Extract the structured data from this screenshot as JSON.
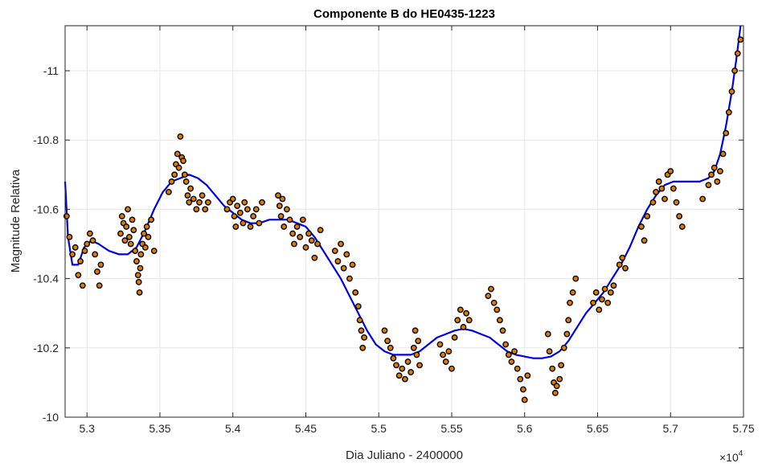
{
  "chart_data": {
    "type": "scatter",
    "title": "Componente B do HE0435-1223",
    "xlabel": "Dia Juliano - 2400000",
    "ylabel": "Magnitude Relativa",
    "x_multiplier_label": "×10",
    "x_multiplier_exp": "4",
    "xlim": [
      52850,
      57500
    ],
    "ylim": [
      -10.0,
      -11.13
    ],
    "y_reversed": true,
    "grid": true,
    "x_ticks": [
      53000,
      53500,
      54000,
      54500,
      55000,
      55500,
      56000,
      56500,
      57000,
      57500
    ],
    "x_tick_labels": [
      "5.3",
      "5.35",
      "5.4",
      "5.45",
      "5.5",
      "5.55",
      "5.6",
      "5.65",
      "5.7",
      "5.75"
    ],
    "y_ticks": [
      -10.0,
      -10.2,
      -10.4,
      -10.6,
      -10.8,
      -11.0
    ],
    "y_tick_labels": [
      "-10",
      "-10.2",
      "-10.4",
      "-10.6",
      "-10.8",
      "-11"
    ],
    "colors": {
      "points_fill": "#e07b00",
      "points_edge": "#000000",
      "fit_line": "#0000e6",
      "grid": "#e6e6e6",
      "axis": "#262626"
    },
    "series": [
      {
        "kind": "points",
        "values": [
          [
            52860,
            -10.58
          ],
          [
            52880,
            -10.52
          ],
          [
            52900,
            -10.47
          ],
          [
            52920,
            -10.49
          ],
          [
            52940,
            -10.41
          ],
          [
            52955,
            -10.45
          ],
          [
            52970,
            -10.38
          ],
          [
            52985,
            -10.48
          ],
          [
            53000,
            -10.5
          ],
          [
            53020,
            -10.53
          ],
          [
            53040,
            -10.51
          ],
          [
            53055,
            -10.47
          ],
          [
            53070,
            -10.42
          ],
          [
            53085,
            -10.38
          ],
          [
            53095,
            -10.44
          ],
          [
            53230,
            -10.53
          ],
          [
            53240,
            -10.58
          ],
          [
            53250,
            -10.56
          ],
          [
            53260,
            -10.51
          ],
          [
            53270,
            -10.55
          ],
          [
            53280,
            -10.6
          ],
          [
            53290,
            -10.52
          ],
          [
            53300,
            -10.5
          ],
          [
            53310,
            -10.57
          ],
          [
            53320,
            -10.54
          ],
          [
            53330,
            -10.48
          ],
          [
            53340,
            -10.45
          ],
          [
            53350,
            -10.41
          ],
          [
            53355,
            -10.39
          ],
          [
            53360,
            -10.36
          ],
          [
            53365,
            -10.43
          ],
          [
            53370,
            -10.47
          ],
          [
            53380,
            -10.5
          ],
          [
            53390,
            -10.53
          ],
          [
            53400,
            -10.49
          ],
          [
            53410,
            -10.55
          ],
          [
            53420,
            -10.52
          ],
          [
            53440,
            -10.57
          ],
          [
            53460,
            -10.48
          ],
          [
            53560,
            -10.65
          ],
          [
            53580,
            -10.68
          ],
          [
            53600,
            -10.7
          ],
          [
            53610,
            -10.73
          ],
          [
            53620,
            -10.76
          ],
          [
            53630,
            -10.72
          ],
          [
            53640,
            -10.81
          ],
          [
            53650,
            -10.75
          ],
          [
            53660,
            -10.74
          ],
          [
            53670,
            -10.7
          ],
          [
            53680,
            -10.68
          ],
          [
            53690,
            -10.64
          ],
          [
            53700,
            -10.62
          ],
          [
            53710,
            -10.66
          ],
          [
            53730,
            -10.63
          ],
          [
            53750,
            -10.6
          ],
          [
            53770,
            -10.62
          ],
          [
            53790,
            -10.64
          ],
          [
            53810,
            -10.6
          ],
          [
            53830,
            -10.62
          ],
          [
            53960,
            -10.6
          ],
          [
            53980,
            -10.62
          ],
          [
            54000,
            -10.63
          ],
          [
            54010,
            -10.58
          ],
          [
            54020,
            -10.55
          ],
          [
            54030,
            -10.61
          ],
          [
            54050,
            -10.59
          ],
          [
            54070,
            -10.56
          ],
          [
            54080,
            -10.62
          ],
          [
            54100,
            -10.6
          ],
          [
            54120,
            -10.55
          ],
          [
            54140,
            -10.58
          ],
          [
            54160,
            -10.6
          ],
          [
            54180,
            -10.56
          ],
          [
            54200,
            -10.62
          ],
          [
            54310,
            -10.64
          ],
          [
            54320,
            -10.61
          ],
          [
            54330,
            -10.58
          ],
          [
            54340,
            -10.63
          ],
          [
            54350,
            -10.55
          ],
          [
            54370,
            -10.6
          ],
          [
            54390,
            -10.57
          ],
          [
            54410,
            -10.53
          ],
          [
            54420,
            -10.5
          ],
          [
            54440,
            -10.55
          ],
          [
            54460,
            -10.52
          ],
          [
            54480,
            -10.57
          ],
          [
            54500,
            -10.49
          ],
          [
            54520,
            -10.53
          ],
          [
            54540,
            -10.51
          ],
          [
            54560,
            -10.46
          ],
          [
            54580,
            -10.5
          ],
          [
            54600,
            -10.54
          ],
          [
            54700,
            -10.48
          ],
          [
            54720,
            -10.45
          ],
          [
            54740,
            -10.5
          ],
          [
            54760,
            -10.43
          ],
          [
            54780,
            -10.47
          ],
          [
            54800,
            -10.4
          ],
          [
            54820,
            -10.44
          ],
          [
            54840,
            -10.36
          ],
          [
            54860,
            -10.32
          ],
          [
            54870,
            -10.28
          ],
          [
            54880,
            -10.25
          ],
          [
            54890,
            -10.2
          ],
          [
            54900,
            -10.23
          ],
          [
            55040,
            -10.25
          ],
          [
            55060,
            -10.22
          ],
          [
            55080,
            -10.2
          ],
          [
            55100,
            -10.17
          ],
          [
            55120,
            -10.15
          ],
          [
            55140,
            -10.12
          ],
          [
            55160,
            -10.14
          ],
          [
            55180,
            -10.11
          ],
          [
            55200,
            -10.16
          ],
          [
            55220,
            -10.13
          ],
          [
            55240,
            -10.2
          ],
          [
            55250,
            -10.25
          ],
          [
            55260,
            -10.18
          ],
          [
            55270,
            -10.22
          ],
          [
            55280,
            -10.15
          ],
          [
            55420,
            -10.21
          ],
          [
            55440,
            -10.18
          ],
          [
            55460,
            -10.16
          ],
          [
            55480,
            -10.19
          ],
          [
            55500,
            -10.14
          ],
          [
            55520,
            -10.23
          ],
          [
            55540,
            -10.28
          ],
          [
            55560,
            -10.31
          ],
          [
            55580,
            -10.26
          ],
          [
            55600,
            -10.3
          ],
          [
            55620,
            -10.28
          ],
          [
            55750,
            -10.35
          ],
          [
            55770,
            -10.37
          ],
          [
            55790,
            -10.33
          ],
          [
            55810,
            -10.31
          ],
          [
            55830,
            -10.28
          ],
          [
            55850,
            -10.25
          ],
          [
            55870,
            -10.21
          ],
          [
            55890,
            -10.18
          ],
          [
            55910,
            -10.16
          ],
          [
            55930,
            -10.19
          ],
          [
            55950,
            -10.14
          ],
          [
            55970,
            -10.11
          ],
          [
            55990,
            -10.08
          ],
          [
            56000,
            -10.05
          ],
          [
            56020,
            -10.12
          ],
          [
            56160,
            -10.24
          ],
          [
            56170,
            -10.19
          ],
          [
            56190,
            -10.14
          ],
          [
            56200,
            -10.1
          ],
          [
            56210,
            -10.07
          ],
          [
            56220,
            -10.09
          ],
          [
            56240,
            -10.11
          ],
          [
            56250,
            -10.15
          ],
          [
            56270,
            -10.2
          ],
          [
            56290,
            -10.24
          ],
          [
            56300,
            -10.28
          ],
          [
            56310,
            -10.33
          ],
          [
            56330,
            -10.36
          ],
          [
            56350,
            -10.4
          ],
          [
            56470,
            -10.33
          ],
          [
            56490,
            -10.36
          ],
          [
            56510,
            -10.31
          ],
          [
            56530,
            -10.34
          ],
          [
            56550,
            -10.37
          ],
          [
            56570,
            -10.33
          ],
          [
            56590,
            -10.36
          ],
          [
            56610,
            -10.38
          ],
          [
            56650,
            -10.44
          ],
          [
            56670,
            -10.46
          ],
          [
            56690,
            -10.43
          ],
          [
            56800,
            -10.55
          ],
          [
            56820,
            -10.51
          ],
          [
            56840,
            -10.58
          ],
          [
            56880,
            -10.62
          ],
          [
            56900,
            -10.65
          ],
          [
            56920,
            -10.68
          ],
          [
            56940,
            -10.66
          ],
          [
            56960,
            -10.63
          ],
          [
            56980,
            -10.7
          ],
          [
            57000,
            -10.71
          ],
          [
            57020,
            -10.66
          ],
          [
            57040,
            -10.62
          ],
          [
            57060,
            -10.58
          ],
          [
            57080,
            -10.55
          ],
          [
            57220,
            -10.63
          ],
          [
            57260,
            -10.67
          ],
          [
            57280,
            -10.7
          ],
          [
            57300,
            -10.72
          ],
          [
            57320,
            -10.68
          ],
          [
            57340,
            -10.71
          ],
          [
            57360,
            -10.76
          ],
          [
            57380,
            -10.82
          ],
          [
            57400,
            -10.88
          ],
          [
            57420,
            -10.94
          ],
          [
            57440,
            -11.0
          ],
          [
            57460,
            -11.05
          ],
          [
            57480,
            -11.09
          ]
        ]
      },
      {
        "kind": "fit",
        "values": [
          [
            52850,
            -10.68
          ],
          [
            52870,
            -10.52
          ],
          [
            52900,
            -10.44
          ],
          [
            52940,
            -10.44
          ],
          [
            52980,
            -10.49
          ],
          [
            53030,
            -10.51
          ],
          [
            53080,
            -10.5
          ],
          [
            53150,
            -10.48
          ],
          [
            53220,
            -10.47
          ],
          [
            53280,
            -10.47
          ],
          [
            53340,
            -10.49
          ],
          [
            53400,
            -10.54
          ],
          [
            53460,
            -10.6
          ],
          [
            53520,
            -10.65
          ],
          [
            53580,
            -10.68
          ],
          [
            53640,
            -10.69
          ],
          [
            53700,
            -10.7
          ],
          [
            53760,
            -10.69
          ],
          [
            53820,
            -10.67
          ],
          [
            53880,
            -10.64
          ],
          [
            53940,
            -10.61
          ],
          [
            54000,
            -10.59
          ],
          [
            54060,
            -10.57
          ],
          [
            54120,
            -10.56
          ],
          [
            54180,
            -10.56
          ],
          [
            54250,
            -10.57
          ],
          [
            54320,
            -10.57
          ],
          [
            54380,
            -10.57
          ],
          [
            54440,
            -10.56
          ],
          [
            54500,
            -10.55
          ],
          [
            54560,
            -10.52
          ],
          [
            54620,
            -10.48
          ],
          [
            54680,
            -10.44
          ],
          [
            54740,
            -10.4
          ],
          [
            54800,
            -10.35
          ],
          [
            54860,
            -10.3
          ],
          [
            54920,
            -10.25
          ],
          [
            54980,
            -10.21
          ],
          [
            55040,
            -10.19
          ],
          [
            55100,
            -10.18
          ],
          [
            55160,
            -10.18
          ],
          [
            55220,
            -10.18
          ],
          [
            55280,
            -10.19
          ],
          [
            55340,
            -10.21
          ],
          [
            55400,
            -10.23
          ],
          [
            55460,
            -10.24
          ],
          [
            55520,
            -10.25
          ],
          [
            55580,
            -10.255
          ],
          [
            55640,
            -10.25
          ],
          [
            55700,
            -10.24
          ],
          [
            55760,
            -10.23
          ],
          [
            55820,
            -10.21
          ],
          [
            55880,
            -10.19
          ],
          [
            55940,
            -10.18
          ],
          [
            56000,
            -10.175
          ],
          [
            56060,
            -10.17
          ],
          [
            56120,
            -10.17
          ],
          [
            56180,
            -10.175
          ],
          [
            56240,
            -10.19
          ],
          [
            56300,
            -10.22
          ],
          [
            56360,
            -10.26
          ],
          [
            56420,
            -10.3
          ],
          [
            56480,
            -10.33
          ],
          [
            56540,
            -10.36
          ],
          [
            56600,
            -10.4
          ],
          [
            56660,
            -10.44
          ],
          [
            56720,
            -10.49
          ],
          [
            56780,
            -10.55
          ],
          [
            56840,
            -10.6
          ],
          [
            56900,
            -10.64
          ],
          [
            56960,
            -10.67
          ],
          [
            57020,
            -10.68
          ],
          [
            57080,
            -10.68
          ],
          [
            57140,
            -10.68
          ],
          [
            57200,
            -10.68
          ],
          [
            57260,
            -10.69
          ],
          [
            57300,
            -10.71
          ],
          [
            57340,
            -10.76
          ],
          [
            57380,
            -10.84
          ],
          [
            57420,
            -10.94
          ],
          [
            57450,
            -11.03
          ],
          [
            57480,
            -11.13
          ]
        ]
      }
    ]
  }
}
